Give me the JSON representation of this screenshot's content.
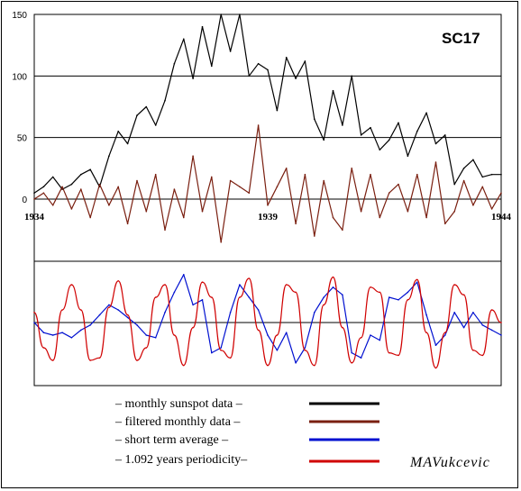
{
  "chart_data": [
    {
      "type": "line",
      "title": "SC17",
      "x": [
        1934.0,
        1934.2,
        1934.4,
        1934.6,
        1934.8,
        1935.0,
        1935.2,
        1935.4,
        1935.6,
        1935.8,
        1936.0,
        1936.2,
        1936.4,
        1936.6,
        1936.8,
        1937.0,
        1937.2,
        1937.4,
        1937.6,
        1937.8,
        1938.0,
        1938.2,
        1938.4,
        1938.6,
        1938.8,
        1939.0,
        1939.2,
        1939.4,
        1939.6,
        1939.8,
        1940.0,
        1940.2,
        1940.4,
        1940.6,
        1940.8,
        1941.0,
        1941.2,
        1941.4,
        1941.6,
        1941.8,
        1942.0,
        1942.2,
        1942.4,
        1942.6,
        1942.8,
        1943.0,
        1943.2,
        1943.4,
        1943.6,
        1943.8,
        1944.0
      ],
      "x_ticks": [
        "1934",
        "1939",
        "1944"
      ],
      "y_ticks": [
        "0",
        "50",
        "100",
        "150"
      ],
      "ylim": [
        0,
        150
      ],
      "grid": "horizontal",
      "series": [
        {
          "legend_key": "monthly",
          "color": "#000000",
          "values": [
            5,
            10,
            18,
            8,
            12,
            20,
            24,
            10,
            35,
            55,
            45,
            68,
            75,
            60,
            80,
            110,
            130,
            98,
            140,
            108,
            150,
            120,
            150,
            100,
            110,
            105,
            72,
            115,
            98,
            112,
            65,
            48,
            88,
            60,
            100,
            52,
            58,
            40,
            48,
            62,
            35,
            55,
            70,
            45,
            52,
            12,
            25,
            32,
            18,
            20,
            20
          ]
        },
        {
          "legend_key": "filtered",
          "color": "#7a1f10",
          "values": [
            0,
            5,
            -5,
            10,
            -8,
            8,
            -15,
            12,
            -5,
            10,
            -20,
            15,
            -10,
            20,
            -25,
            8,
            -15,
            35,
            -10,
            18,
            -35,
            15,
            10,
            5,
            60,
            -5,
            10,
            25,
            -20,
            20,
            -30,
            15,
            -15,
            -25,
            25,
            -10,
            20,
            -15,
            5,
            12,
            -10,
            20,
            -15,
            30,
            -20,
            -10,
            15,
            -5,
            10,
            -8,
            5
          ]
        },
        {
          "legend_key": "short_term",
          "color": "#0010d0",
          "values": [
            0,
            -8,
            -10,
            -8,
            -12,
            -6,
            -2,
            6,
            14,
            10,
            4,
            -2,
            -10,
            -12,
            8,
            24,
            38,
            14,
            18,
            -24,
            -20,
            8,
            30,
            20,
            10,
            -10,
            -22,
            -8,
            -32,
            -20,
            8,
            20,
            28,
            22,
            -24,
            -28,
            -10,
            -14,
            20,
            18,
            24,
            32,
            6,
            -18,
            -10,
            8,
            -4,
            8,
            -2,
            -6,
            -10
          ]
        },
        {
          "legend_key": "periodicity",
          "color": "#d00000",
          "values": [
            8,
            -20,
            -30,
            10,
            30,
            10,
            -30,
            -28,
            12,
            33,
            6,
            -30,
            -20,
            20,
            30,
            -10,
            -34,
            -4,
            32,
            20,
            -22,
            -28,
            20,
            35,
            -6,
            -34,
            -10,
            30,
            24,
            -22,
            -34,
            14,
            36,
            -4,
            -32,
            -12,
            28,
            24,
            -24,
            -26,
            18,
            34,
            -8,
            -36,
            -8,
            30,
            22,
            -22,
            -26,
            10,
            0
          ]
        }
      ]
    }
  ],
  "legend": {
    "monthly": "– monthly sunspot data –",
    "filtered": "– filtered monthly data –",
    "short_term": "– short term average –",
    "periodicity": "– 1.092 years periodicity–"
  },
  "author": "MAVukcevic"
}
